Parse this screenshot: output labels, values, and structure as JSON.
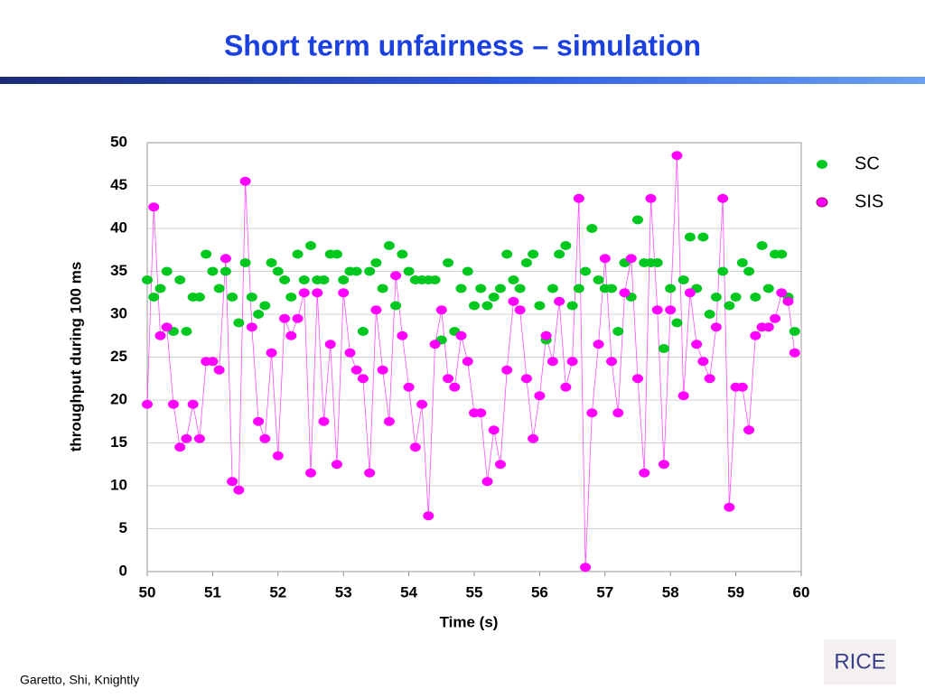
{
  "header": {
    "title": "Short term unfairness – simulation"
  },
  "footer": {
    "authors": "Garetto, Shi, Knightly",
    "logo": "RICE"
  },
  "chart_data": {
    "type": "scatter",
    "x_label": "Time (s)",
    "y_label": "throughput during 100 ms",
    "x": [
      50.0,
      50.1,
      50.2,
      50.3,
      50.4,
      50.5,
      50.6,
      50.7,
      50.8,
      50.9,
      51.0,
      51.1,
      51.2,
      51.3,
      51.4,
      51.5,
      51.6,
      51.7,
      51.8,
      51.9,
      52.0,
      52.1,
      52.2,
      52.3,
      52.4,
      52.5,
      52.6,
      52.7,
      52.8,
      52.9,
      53.0,
      53.1,
      53.2,
      53.3,
      53.4,
      53.5,
      53.6,
      53.7,
      53.8,
      53.9,
      54.0,
      54.1,
      54.2,
      54.3,
      54.4,
      54.5,
      54.6,
      54.7,
      54.8,
      54.9,
      55.0,
      55.1,
      55.2,
      55.3,
      55.4,
      55.5,
      55.6,
      55.7,
      55.8,
      55.9,
      56.0,
      56.1,
      56.2,
      56.3,
      56.4,
      56.5,
      56.6,
      56.7,
      56.8,
      56.9,
      57.0,
      57.1,
      57.2,
      57.3,
      57.4,
      57.5,
      57.6,
      57.7,
      57.8,
      57.9,
      58.0,
      58.1,
      58.2,
      58.3,
      58.4,
      58.5,
      58.6,
      58.7,
      58.8,
      58.9,
      59.0,
      59.1,
      59.2,
      59.3,
      59.4,
      59.5,
      59.6,
      59.7,
      59.8,
      59.9
    ],
    "series": [
      {
        "name": "SC",
        "color": "#00c81e",
        "line": false,
        "values": [
          34,
          32,
          33,
          35,
          28,
          34,
          28,
          32,
          32,
          37,
          35,
          33,
          35,
          32,
          29,
          36,
          32,
          30,
          31,
          36,
          35,
          34,
          32,
          37,
          34,
          38,
          34,
          34,
          37,
          37,
          34,
          35,
          35,
          28,
          35,
          36,
          33,
          38,
          31,
          37,
          35,
          34,
          34,
          34,
          34,
          27,
          36,
          28,
          33,
          35,
          31,
          33,
          31,
          32,
          33,
          37,
          34,
          33,
          36,
          37,
          31,
          27,
          33,
          37,
          38,
          31,
          33,
          35,
          40,
          34,
          33,
          33,
          28,
          36,
          32,
          41,
          36,
          36,
          36,
          26,
          33,
          29,
          34,
          39,
          33,
          39,
          30,
          32,
          35,
          31,
          32,
          36,
          35,
          32,
          38,
          33,
          37,
          37,
          32,
          28
        ]
      },
      {
        "name": "SIS",
        "color": "#ff00ff",
        "line": true,
        "values": [
          19.5,
          42.5,
          27.5,
          28.5,
          19.5,
          14.5,
          15.5,
          19.5,
          15.5,
          24.5,
          24.5,
          23.5,
          36.5,
          10.5,
          9.5,
          45.5,
          28.5,
          17.5,
          15.5,
          25.5,
          13.5,
          29.5,
          27.5,
          29.5,
          32.5,
          11.5,
          32.5,
          17.5,
          26.5,
          12.5,
          32.5,
          25.5,
          23.5,
          22.5,
          11.5,
          30.5,
          23.5,
          17.5,
          34.5,
          27.5,
          21.5,
          14.5,
          19.5,
          6.5,
          26.5,
          30.5,
          22.5,
          21.5,
          27.5,
          24.5,
          18.5,
          18.5,
          10.5,
          16.5,
          12.5,
          23.5,
          31.5,
          30.5,
          22.5,
          15.5,
          20.5,
          27.5,
          24.5,
          31.5,
          21.5,
          24.5,
          43.5,
          0.5,
          18.5,
          26.5,
          36.5,
          24.5,
          18.5,
          32.5,
          36.5,
          22.5,
          11.5,
          43.5,
          30.5,
          12.5,
          30.5,
          48.5,
          20.5,
          32.5,
          26.5,
          24.5,
          22.5,
          28.5,
          43.5,
          7.5,
          21.5,
          21.5,
          16.5,
          27.5,
          28.5,
          28.5,
          29.5,
          32.5,
          31.5,
          25.5
        ]
      }
    ],
    "xlim": [
      50,
      60
    ],
    "xticks": [
      50,
      51,
      52,
      53,
      54,
      55,
      56,
      57,
      58,
      59,
      60
    ],
    "ylim": [
      0,
      50
    ],
    "yticks": [
      0,
      5,
      10,
      15,
      20,
      25,
      30,
      35,
      40,
      45,
      50
    ],
    "grid": true,
    "legend": "right"
  }
}
